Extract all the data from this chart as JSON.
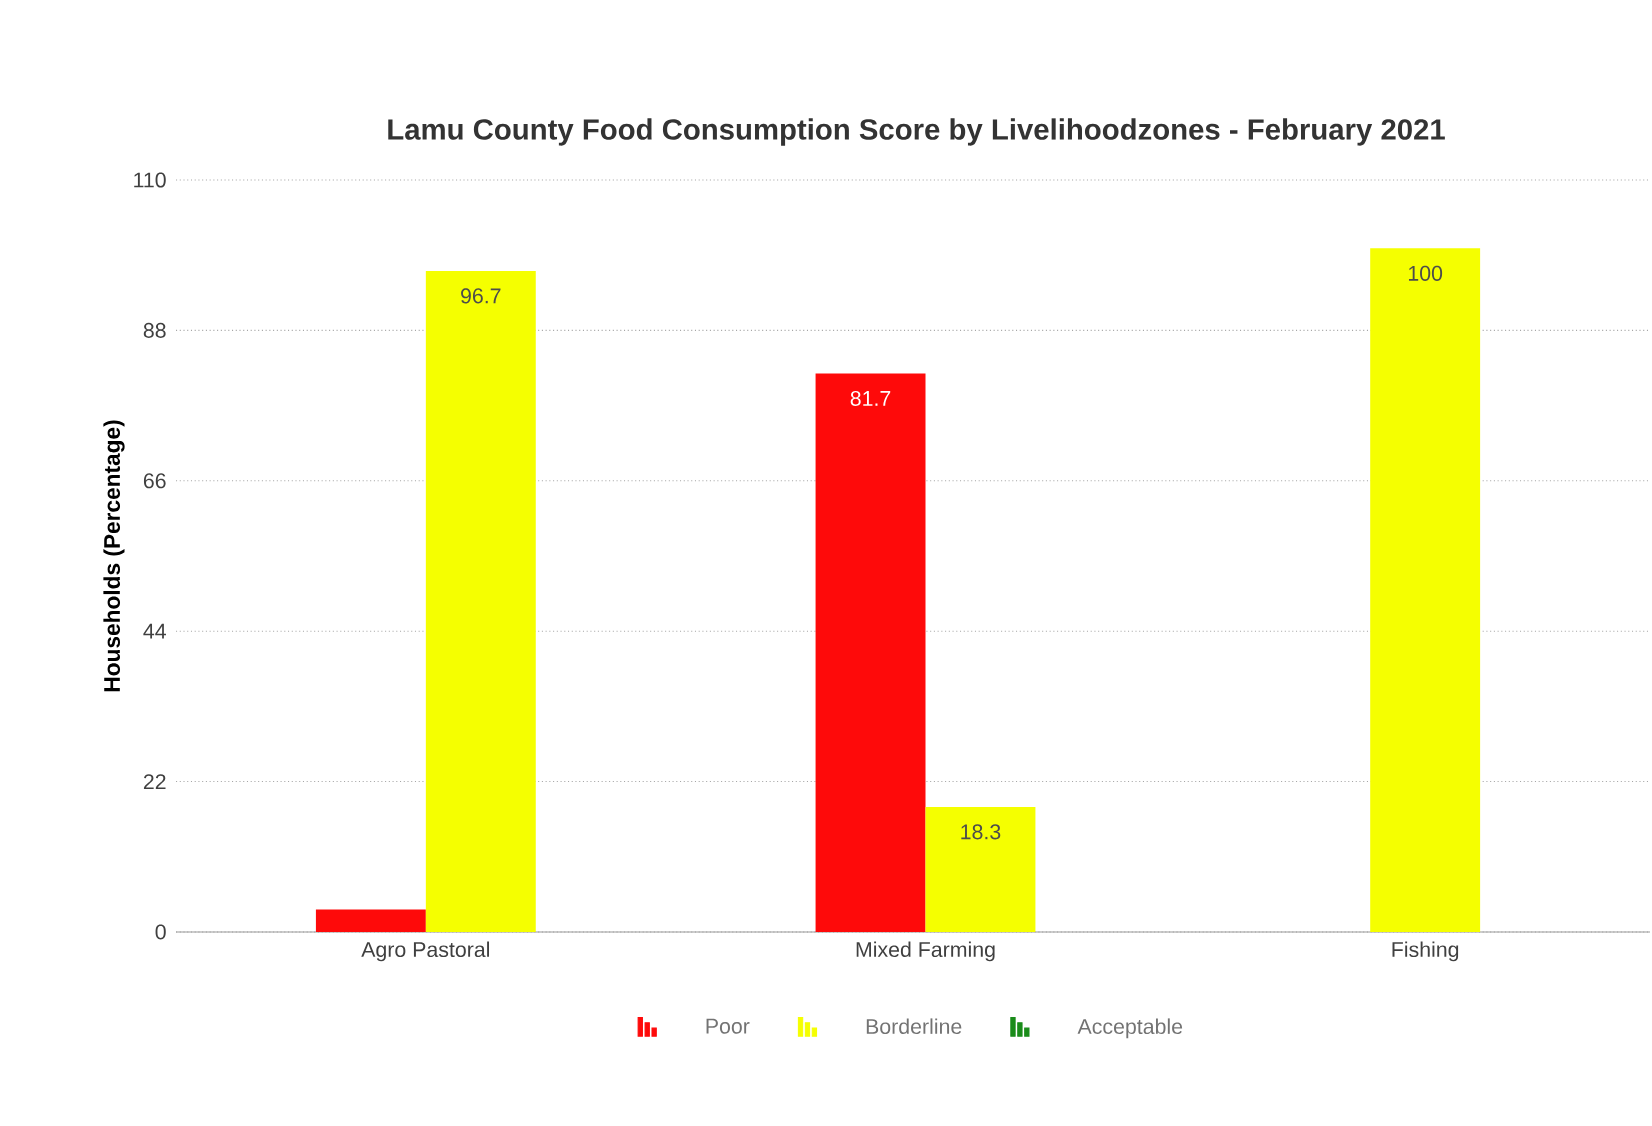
{
  "chart_data": {
    "type": "bar",
    "title": "Lamu County Food Consumption Score by Livelihoodzones - February 2021",
    "ylabel": "Households (Percentage)",
    "categories": [
      "Agro Pastoral",
      "Mixed Farming",
      "Fishing"
    ],
    "series": [
      {
        "name": "Poor",
        "color": "#fe0a0a",
        "values": [
          3.3,
          81.7,
          null
        ],
        "value_labels": [
          null,
          "81.7",
          null
        ]
      },
      {
        "name": "Borderline",
        "color": "#f5ff00",
        "values": [
          96.7,
          18.3,
          100
        ],
        "value_labels": [
          "96.7",
          "18.3",
          "100"
        ]
      },
      {
        "name": "Acceptable",
        "color": "#1a8c1a",
        "values": [
          null,
          null,
          null
        ]
      }
    ],
    "ylim": [
      0,
      110
    ],
    "yticks": [
      0,
      22,
      44,
      66,
      88,
      110
    ],
    "grid": "y",
    "legend": "bottom"
  }
}
